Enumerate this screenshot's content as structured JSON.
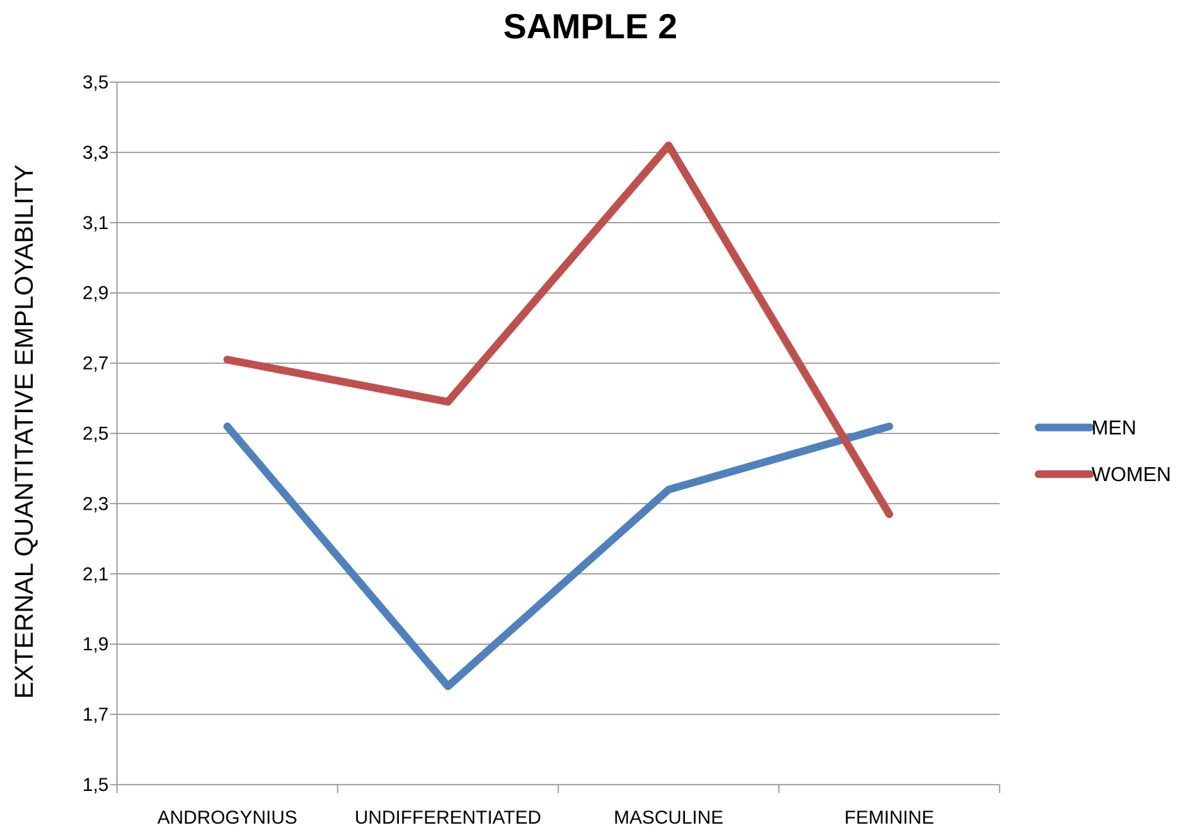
{
  "chart_data": {
    "type": "line",
    "title": "SAMPLE 2",
    "xlabel": "",
    "ylabel": "EXTERNAL QUANTITATIVE EMPLOYABILITY",
    "categories": [
      "ANDROGYNIUS",
      "UNDIFFERENTIATED",
      "MASCULINE",
      "FEMININE"
    ],
    "ylim": [
      1.5,
      3.5
    ],
    "yticks": [
      1.5,
      1.7,
      1.9,
      2.1,
      2.3,
      2.5,
      2.7,
      2.9,
      3.1,
      3.3,
      3.5
    ],
    "ytick_labels": [
      "1,5",
      "1,7",
      "1,9",
      "2,1",
      "2,3",
      "2,5",
      "2,7",
      "2,9",
      "3,1",
      "3,3",
      "3,5"
    ],
    "grid": true,
    "legend_position": "right",
    "series": [
      {
        "name": "MEN",
        "color": "#4f81bd",
        "values": [
          2.52,
          1.78,
          2.34,
          2.52
        ]
      },
      {
        "name": "WOMEN",
        "color": "#c0504d",
        "values": [
          2.71,
          2.59,
          3.32,
          2.27
        ]
      }
    ]
  }
}
